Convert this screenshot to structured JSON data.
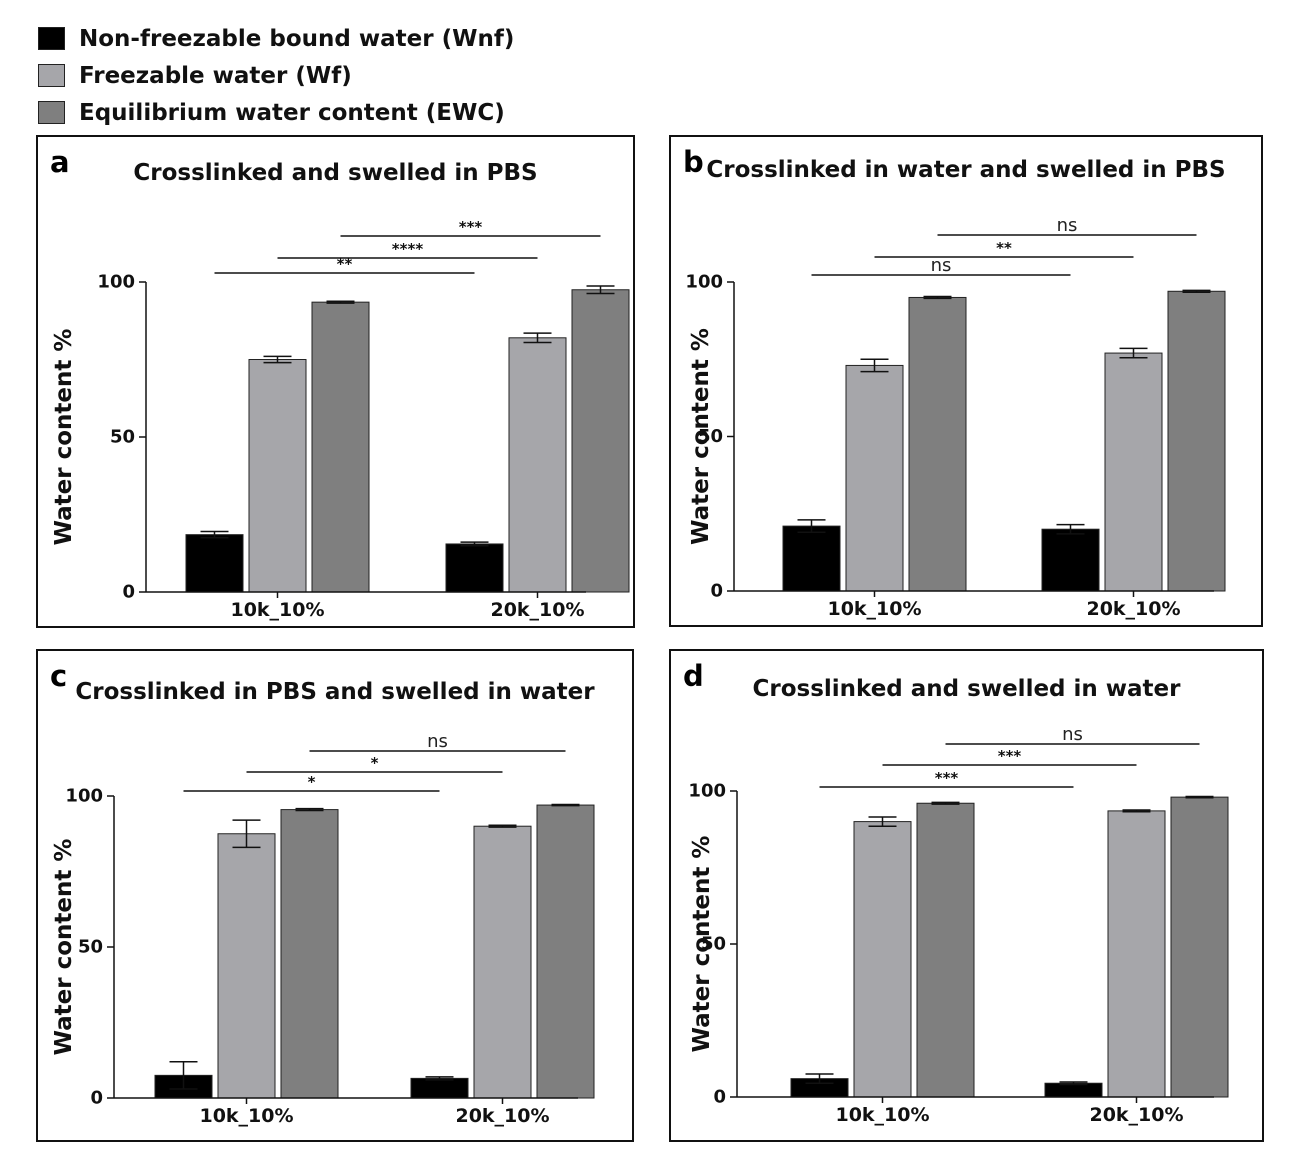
{
  "legend": [
    {
      "label": "Non-freezable bound water (Wnf)",
      "color": "#000000"
    },
    {
      "label": "Freezable water (Wf)",
      "color": "#a6a6aa"
    },
    {
      "label": "Equilibrium water content (EWC)",
      "color": "#7f7f7f"
    }
  ],
  "chart_data": [
    {
      "letter": "a",
      "type": "bar",
      "title": "Crosslinked and swelled in PBS",
      "ylabel": "Water content %",
      "ylim": [
        0,
        100
      ],
      "yticks": [
        0,
        50,
        100
      ],
      "categories": [
        "10k_10%",
        "20k_10%"
      ],
      "series": [
        {
          "name": "Non-freezable bound water (Wnf)",
          "values": [
            18.5,
            15.5
          ],
          "errors": [
            1.0,
            0.6
          ]
        },
        {
          "name": "Freezable water (Wf)",
          "values": [
            75,
            82
          ],
          "errors": [
            1.0,
            1.5
          ]
        },
        {
          "name": "Equilibrium water content (EWC)",
          "values": [
            93.5,
            97.5
          ],
          "errors": [
            0.3,
            1.2
          ]
        }
      ],
      "significance": [
        {
          "from": [
            0,
            0
          ],
          "to": [
            1,
            0
          ],
          "label": "**"
        },
        {
          "from": [
            0,
            1
          ],
          "to": [
            1,
            1
          ],
          "label": "****"
        },
        {
          "from": [
            0,
            2
          ],
          "to": [
            1,
            2
          ],
          "label": "***"
        }
      ]
    },
    {
      "letter": "b",
      "type": "bar",
      "title": "Crosslinked in water and swelled in PBS",
      "ylabel": "Water content %",
      "ylim": [
        0,
        100
      ],
      "yticks": [
        0,
        50,
        100
      ],
      "categories": [
        "10k_10%",
        "20k_10%"
      ],
      "series": [
        {
          "name": "Non-freezable bound water (Wnf)",
          "values": [
            21,
            20
          ],
          "errors": [
            2.0,
            1.5
          ]
        },
        {
          "name": "Freezable water (Wf)",
          "values": [
            73,
            77
          ],
          "errors": [
            2.0,
            1.5
          ]
        },
        {
          "name": "Equilibrium water content (EWC)",
          "values": [
            95,
            97
          ],
          "errors": [
            0.3,
            0.3
          ]
        }
      ],
      "significance": [
        {
          "from": [
            0,
            0
          ],
          "to": [
            1,
            0
          ],
          "label": "ns"
        },
        {
          "from": [
            0,
            1
          ],
          "to": [
            1,
            1
          ],
          "label": "**"
        },
        {
          "from": [
            0,
            2
          ],
          "to": [
            1,
            2
          ],
          "label": "ns"
        }
      ]
    },
    {
      "letter": "c",
      "type": "bar",
      "title": "Crosslinked in PBS and swelled in water",
      "ylabel": "Water content %",
      "ylim": [
        0,
        100
      ],
      "yticks": [
        0,
        50,
        100
      ],
      "categories": [
        "10k_10%",
        "20k_10%"
      ],
      "series": [
        {
          "name": "Non-freezable bound water (Wnf)",
          "values": [
            7.5,
            6.5
          ],
          "errors": [
            4.5,
            0.5
          ]
        },
        {
          "name": "Freezable water (Wf)",
          "values": [
            87.5,
            90
          ],
          "errors": [
            4.5,
            0.3
          ]
        },
        {
          "name": "Equilibrium water content (EWC)",
          "values": [
            95.5,
            97
          ],
          "errors": [
            0.3,
            0.2
          ]
        }
      ],
      "significance": [
        {
          "from": [
            0,
            0
          ],
          "to": [
            1,
            0
          ],
          "label": "*"
        },
        {
          "from": [
            0,
            1
          ],
          "to": [
            1,
            1
          ],
          "label": "*"
        },
        {
          "from": [
            0,
            2
          ],
          "to": [
            1,
            2
          ],
          "label": "ns"
        }
      ]
    },
    {
      "letter": "d",
      "type": "bar",
      "title": "Crosslinked and swelled in water",
      "ylabel": "Water content %",
      "ylim": [
        0,
        100
      ],
      "yticks": [
        0,
        50,
        100
      ],
      "categories": [
        "10k_10%",
        "20k_10%"
      ],
      "series": [
        {
          "name": "Non-freezable bound water (Wnf)",
          "values": [
            6,
            4.5
          ],
          "errors": [
            1.5,
            0.4
          ]
        },
        {
          "name": "Freezable water (Wf)",
          "values": [
            90,
            93.5
          ],
          "errors": [
            1.5,
            0.3
          ]
        },
        {
          "name": "Equilibrium water content (EWC)",
          "values": [
            96,
            98
          ],
          "errors": [
            0.3,
            0.2
          ]
        }
      ],
      "significance": [
        {
          "from": [
            0,
            0
          ],
          "to": [
            1,
            0
          ],
          "label": "***"
        },
        {
          "from": [
            0,
            1
          ],
          "to": [
            1,
            1
          ],
          "label": "***"
        },
        {
          "from": [
            0,
            2
          ],
          "to": [
            1,
            2
          ],
          "label": "ns"
        }
      ]
    }
  ]
}
